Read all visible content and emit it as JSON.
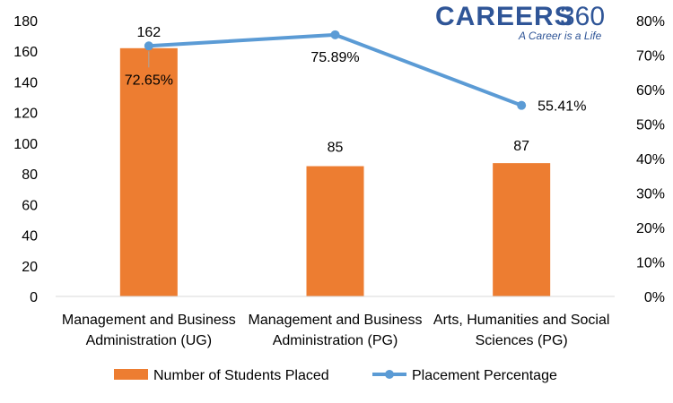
{
  "logo": {
    "main": "CAREERS",
    "number": "360",
    "tagline": "A Career is a Life"
  },
  "chart_data": {
    "type": "bar",
    "categories": [
      [
        "Management and Business",
        "Administration (UG)"
      ],
      [
        "Management and Business",
        "Administration (PG)"
      ],
      [
        "Arts, Humanities and Social",
        "Sciences (PG)"
      ]
    ],
    "series": [
      {
        "name": "Number of Students Placed",
        "type": "bar",
        "axis": "left",
        "color": "#ed7d31",
        "values": [
          162,
          85,
          87
        ],
        "labels": [
          "162",
          "85",
          "87"
        ]
      },
      {
        "name": "Placement Percentage",
        "type": "line",
        "axis": "right",
        "color": "#5b9bd5",
        "values": [
          72.65,
          75.89,
          55.41
        ],
        "labels": [
          "72.65%",
          "75.89%",
          "55.41%"
        ]
      }
    ],
    "y_left": {
      "min": 0,
      "max": 180,
      "ticks": [
        "0",
        "20",
        "40",
        "60",
        "80",
        "100",
        "120",
        "140",
        "160",
        "180"
      ]
    },
    "y_right": {
      "min": 0,
      "max": 80,
      "ticks": [
        "0%",
        "10%",
        "20%",
        "30%",
        "40%",
        "50%",
        "60%",
        "70%",
        "80%"
      ]
    },
    "grid": false,
    "legend_position": "bottom"
  }
}
